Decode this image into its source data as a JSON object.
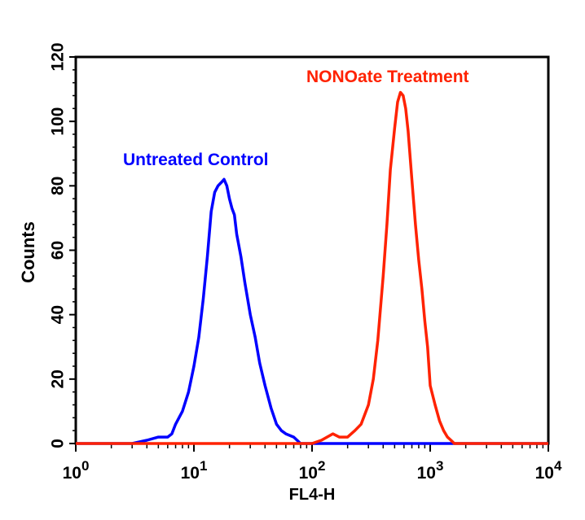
{
  "chart_data": {
    "type": "line",
    "title": "",
    "xlabel": "FL4-H",
    "ylabel": "Counts",
    "xscale": "log",
    "xlim": [
      1,
      10000
    ],
    "ylim": [
      0,
      120
    ],
    "x_ticks": [
      {
        "value": 1,
        "base": "10",
        "exp": "0"
      },
      {
        "value": 10,
        "base": "10",
        "exp": "1"
      },
      {
        "value": 100,
        "base": "10",
        "exp": "2"
      },
      {
        "value": 1000,
        "base": "10",
        "exp": "3"
      },
      {
        "value": 10000,
        "base": "10",
        "exp": "4"
      }
    ],
    "y_ticks": [
      "0",
      "20",
      "40",
      "60",
      "80",
      "100",
      "120"
    ],
    "series": [
      {
        "name": "Untreated Control",
        "color": "#0000ff",
        "x": [
          1,
          3,
          4,
          5,
          5.5,
          6,
          6.5,
          7,
          8,
          9,
          10,
          11,
          12,
          13,
          14,
          15,
          16,
          17,
          18,
          19,
          20,
          21,
          22,
          23,
          25,
          27,
          30,
          33,
          36,
          40,
          45,
          50,
          55,
          60,
          70,
          80,
          90,
          10000
        ],
        "y": [
          0,
          0,
          1,
          2,
          2,
          2,
          3,
          6,
          10,
          16,
          24,
          33,
          45,
          58,
          72,
          78,
          80,
          81,
          82,
          80,
          76,
          73,
          71,
          65,
          58,
          50,
          40,
          33,
          25,
          18,
          11,
          6,
          4,
          3,
          2,
          0,
          0,
          0
        ]
      },
      {
        "name": "NONOate Treatment",
        "color": "#ff2200",
        "x": [
          1,
          100,
          120,
          150,
          170,
          200,
          230,
          260,
          300,
          330,
          360,
          400,
          430,
          460,
          500,
          530,
          560,
          590,
          620,
          650,
          700,
          750,
          800,
          850,
          900,
          950,
          1000,
          1100,
          1200,
          1300,
          1400,
          1500,
          1600,
          10000
        ],
        "y": [
          0,
          0,
          1,
          3,
          2,
          2,
          4,
          6,
          12,
          20,
          32,
          52,
          68,
          85,
          98,
          106,
          109,
          108,
          104,
          97,
          82,
          68,
          57,
          48,
          38,
          30,
          18,
          12,
          7,
          4,
          2,
          1,
          0,
          0
        ]
      }
    ],
    "annotations": [
      "Untreated Control",
      "NONOate Treatment"
    ]
  }
}
